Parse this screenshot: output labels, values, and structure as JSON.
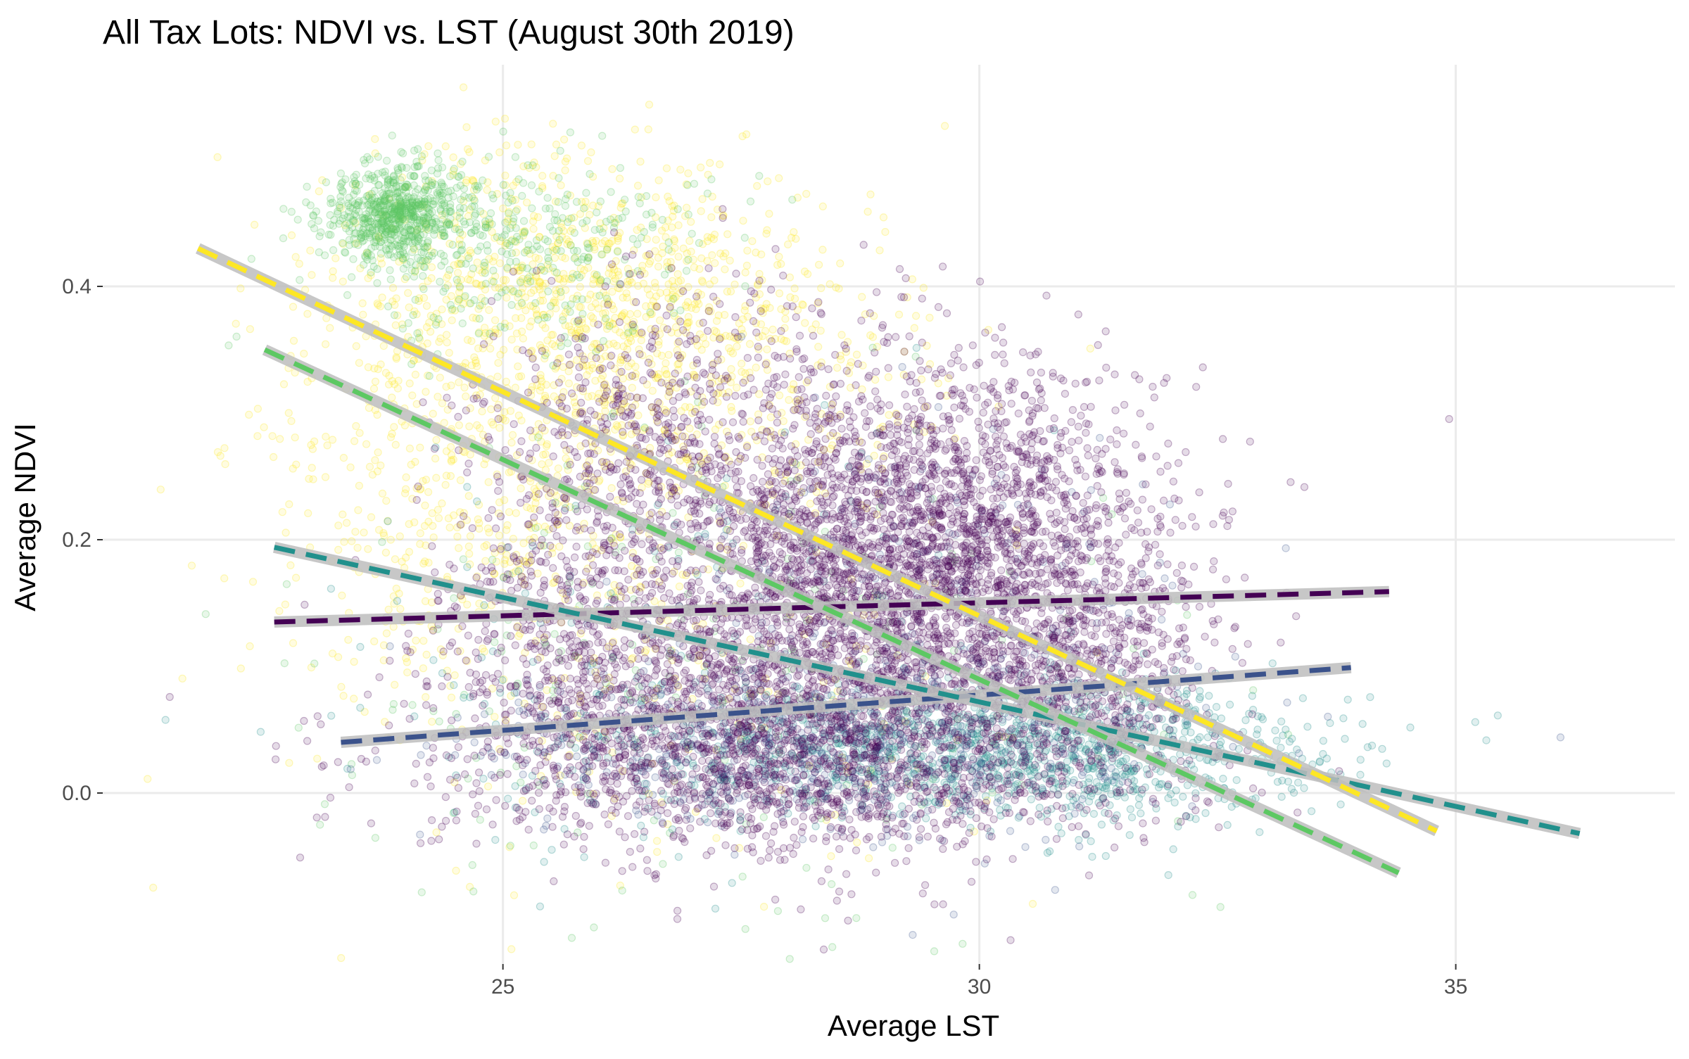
{
  "chart_data": {
    "type": "scatter",
    "title": "All Tax Lots: NDVI vs. LST (August 30th 2019)",
    "xlabel": "Average LST",
    "ylabel": "Average NDVI",
    "xlim": [
      20.8,
      37.3
    ],
    "ylim": [
      -0.135,
      0.575
    ],
    "x_ticks": [
      25,
      30,
      35
    ],
    "y_ticks": [
      0.0,
      0.2,
      0.4
    ],
    "x_tick_labels": [
      "25",
      "30",
      "35"
    ],
    "y_tick_labels": [
      "0.0",
      "0.2",
      "0.4"
    ],
    "grid": true,
    "legend": "none",
    "point_alpha": 0.12,
    "fit_band_color": "#bdbdbd",
    "series": [
      {
        "color": "#440154",
        "fit": {
          "x": [
            22.6,
            34.3
          ],
          "y": [
            0.135,
            0.159
          ]
        },
        "cloud": [
          {
            "cx": 28.6,
            "cy": 0.16,
            "sx": 1.5,
            "sy": 0.085,
            "n": 2600
          },
          {
            "cx": 29.8,
            "cy": 0.2,
            "sx": 1.0,
            "sy": 0.07,
            "n": 1300
          },
          {
            "cx": 27.5,
            "cy": 0.05,
            "sx": 1.6,
            "sy": 0.04,
            "n": 1100
          },
          {
            "cx": 26.6,
            "cy": 0.28,
            "sx": 1.0,
            "sy": 0.06,
            "n": 500
          },
          {
            "cx": 25.6,
            "cy": 0.12,
            "sx": 0.7,
            "sy": 0.06,
            "n": 350
          },
          {
            "cx": 28.0,
            "cy": 0.0,
            "sx": 1.8,
            "sy": 0.025,
            "n": 450
          },
          {
            "cx": 31.2,
            "cy": 0.09,
            "sx": 0.6,
            "sy": 0.05,
            "n": 500
          }
        ]
      },
      {
        "color": "#3b528b",
        "fit": {
          "x": [
            23.3,
            33.9
          ],
          "y": [
            0.04,
            0.099
          ]
        },
        "cloud": [
          {
            "cx": 28.2,
            "cy": 0.04,
            "sx": 1.8,
            "sy": 0.035,
            "n": 600
          },
          {
            "cx": 29.5,
            "cy": 0.12,
            "sx": 1.3,
            "sy": 0.08,
            "n": 350
          }
        ]
      },
      {
        "color": "#21908c",
        "fit": {
          "x": [
            22.6,
            36.3
          ],
          "y": [
            0.194,
            -0.032
          ]
        },
        "cloud": [
          {
            "cx": 29.6,
            "cy": 0.035,
            "sx": 1.9,
            "sy": 0.025,
            "n": 900
          },
          {
            "cx": 31.6,
            "cy": 0.03,
            "sx": 1.0,
            "sy": 0.03,
            "n": 350
          },
          {
            "cx": 27.0,
            "cy": 0.12,
            "sx": 1.6,
            "sy": 0.09,
            "n": 200
          }
        ]
      },
      {
        "color": "#5dc863",
        "fit": {
          "x": [
            22.5,
            34.4
          ],
          "y": [
            0.35,
            -0.063
          ]
        },
        "cloud": [
          {
            "cx": 23.9,
            "cy": 0.458,
            "sx": 0.35,
            "sy": 0.018,
            "n": 650
          },
          {
            "cx": 25.2,
            "cy": 0.43,
            "sx": 1.0,
            "sy": 0.035,
            "n": 350
          },
          {
            "cx": 27.5,
            "cy": 0.1,
            "sx": 2.3,
            "sy": 0.1,
            "n": 250
          }
        ]
      },
      {
        "color": "#fde725",
        "fit": {
          "x": [
            21.8,
            34.8
          ],
          "y": [
            0.43,
            -0.03
          ]
        },
        "cloud": [
          {
            "cx": 25.6,
            "cy": 0.4,
            "sx": 1.2,
            "sy": 0.055,
            "n": 750
          },
          {
            "cx": 24.6,
            "cy": 0.25,
            "sx": 1.1,
            "sy": 0.09,
            "n": 500
          },
          {
            "cx": 27.2,
            "cy": 0.33,
            "sx": 1.3,
            "sy": 0.06,
            "n": 400
          },
          {
            "cx": 26.4,
            "cy": 0.12,
            "sx": 1.8,
            "sy": 0.1,
            "n": 300
          }
        ]
      }
    ]
  }
}
